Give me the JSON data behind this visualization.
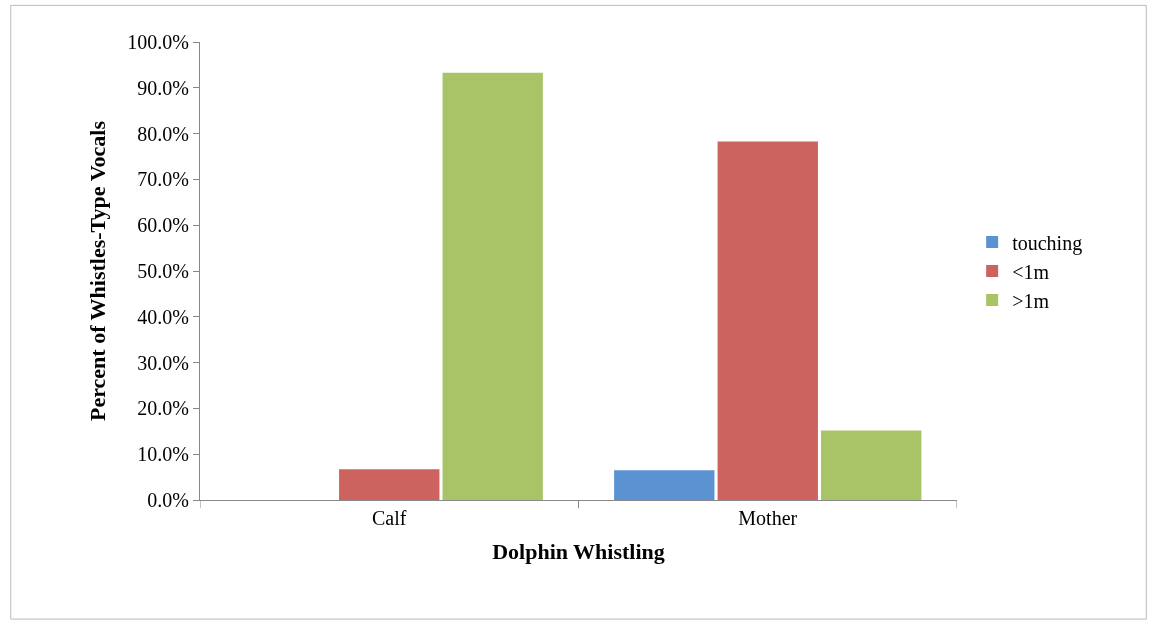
{
  "chart_data": {
    "type": "bar",
    "xlabel": "Dolphin Whistling",
    "ylabel": "Percent of Whistles-Type Vocals",
    "categories": [
      "Calf",
      "Mother"
    ],
    "series": [
      {
        "name": "touching",
        "color": "#5b92d2",
        "values": [
          0,
          6.5
        ]
      },
      {
        "name": "<1m",
        "color": "#cd635e",
        "values": [
          6.7,
          78.3
        ]
      },
      {
        "name": ">1m",
        "color": "#a8c466",
        "values": [
          93.3,
          15.2
        ]
      }
    ],
    "ylim": [
      0,
      100
    ],
    "yticks": [
      {
        "value": 0,
        "label": "0.0%"
      },
      {
        "value": 10,
        "label": "10.0%"
      },
      {
        "value": 20,
        "label": "20.0%"
      },
      {
        "value": 30,
        "label": "30.0%"
      },
      {
        "value": 40,
        "label": "40.0%"
      },
      {
        "value": 50,
        "label": "50.0%"
      },
      {
        "value": 60,
        "label": "60.0%"
      },
      {
        "value": 70,
        "label": "70.0%"
      },
      {
        "value": 80,
        "label": "80.0%"
      },
      {
        "value": 90,
        "label": "90.0%"
      },
      {
        "value": 100,
        "label": "100.0%"
      }
    ],
    "legend": "right"
  }
}
